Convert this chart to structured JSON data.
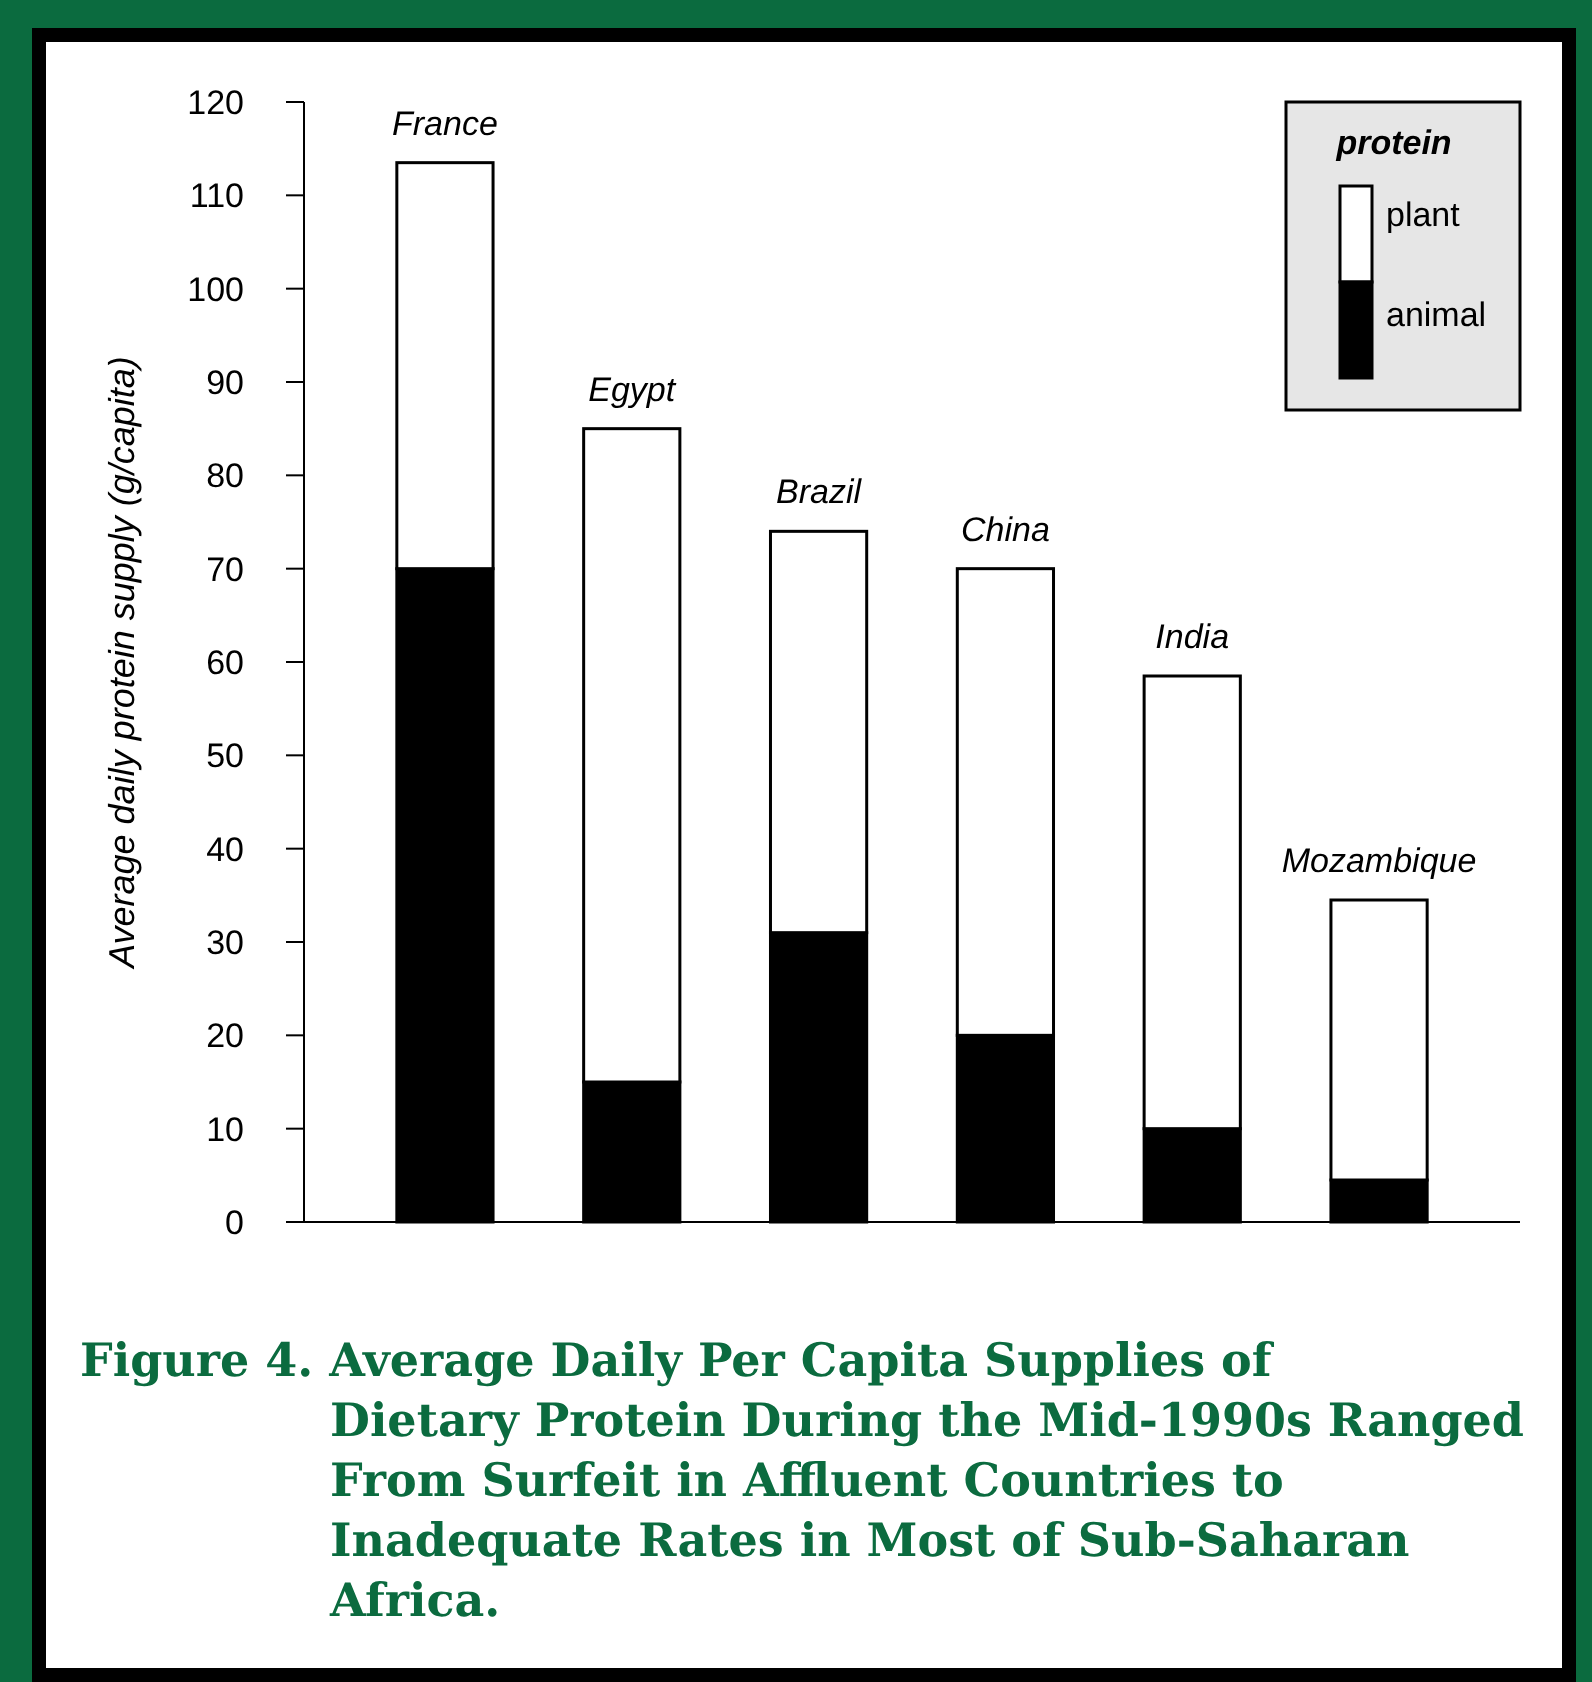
{
  "chart_data": {
    "type": "bar",
    "title": "Figure 4. Average Daily Per Capita Supplies of Dietary Protein During the Mid-1990s Ranged From Surfeit in Affluent Countries to Inadequate Rates in Most of Sub-Saharan Africa.",
    "ylabel": "Average daily protein supply (g/capita)",
    "legend_title": "protein",
    "categories": [
      "France",
      "Egypt",
      "Brazil",
      "China",
      "India",
      "Mozambique"
    ],
    "series": [
      {
        "name": "animal",
        "color": "#000000",
        "values": [
          70,
          15,
          31,
          20,
          10,
          4.5
        ]
      },
      {
        "name": "plant",
        "color": "#ffffff",
        "values": [
          43.5,
          70,
          43,
          50,
          48.5,
          30
        ]
      }
    ],
    "stacked": true,
    "ylim": [
      0,
      120
    ],
    "yticks": [
      0,
      10,
      20,
      30,
      40,
      50,
      60,
      70,
      80,
      90,
      100,
      110,
      120
    ],
    "legend": "top right",
    "grid": false
  }
}
